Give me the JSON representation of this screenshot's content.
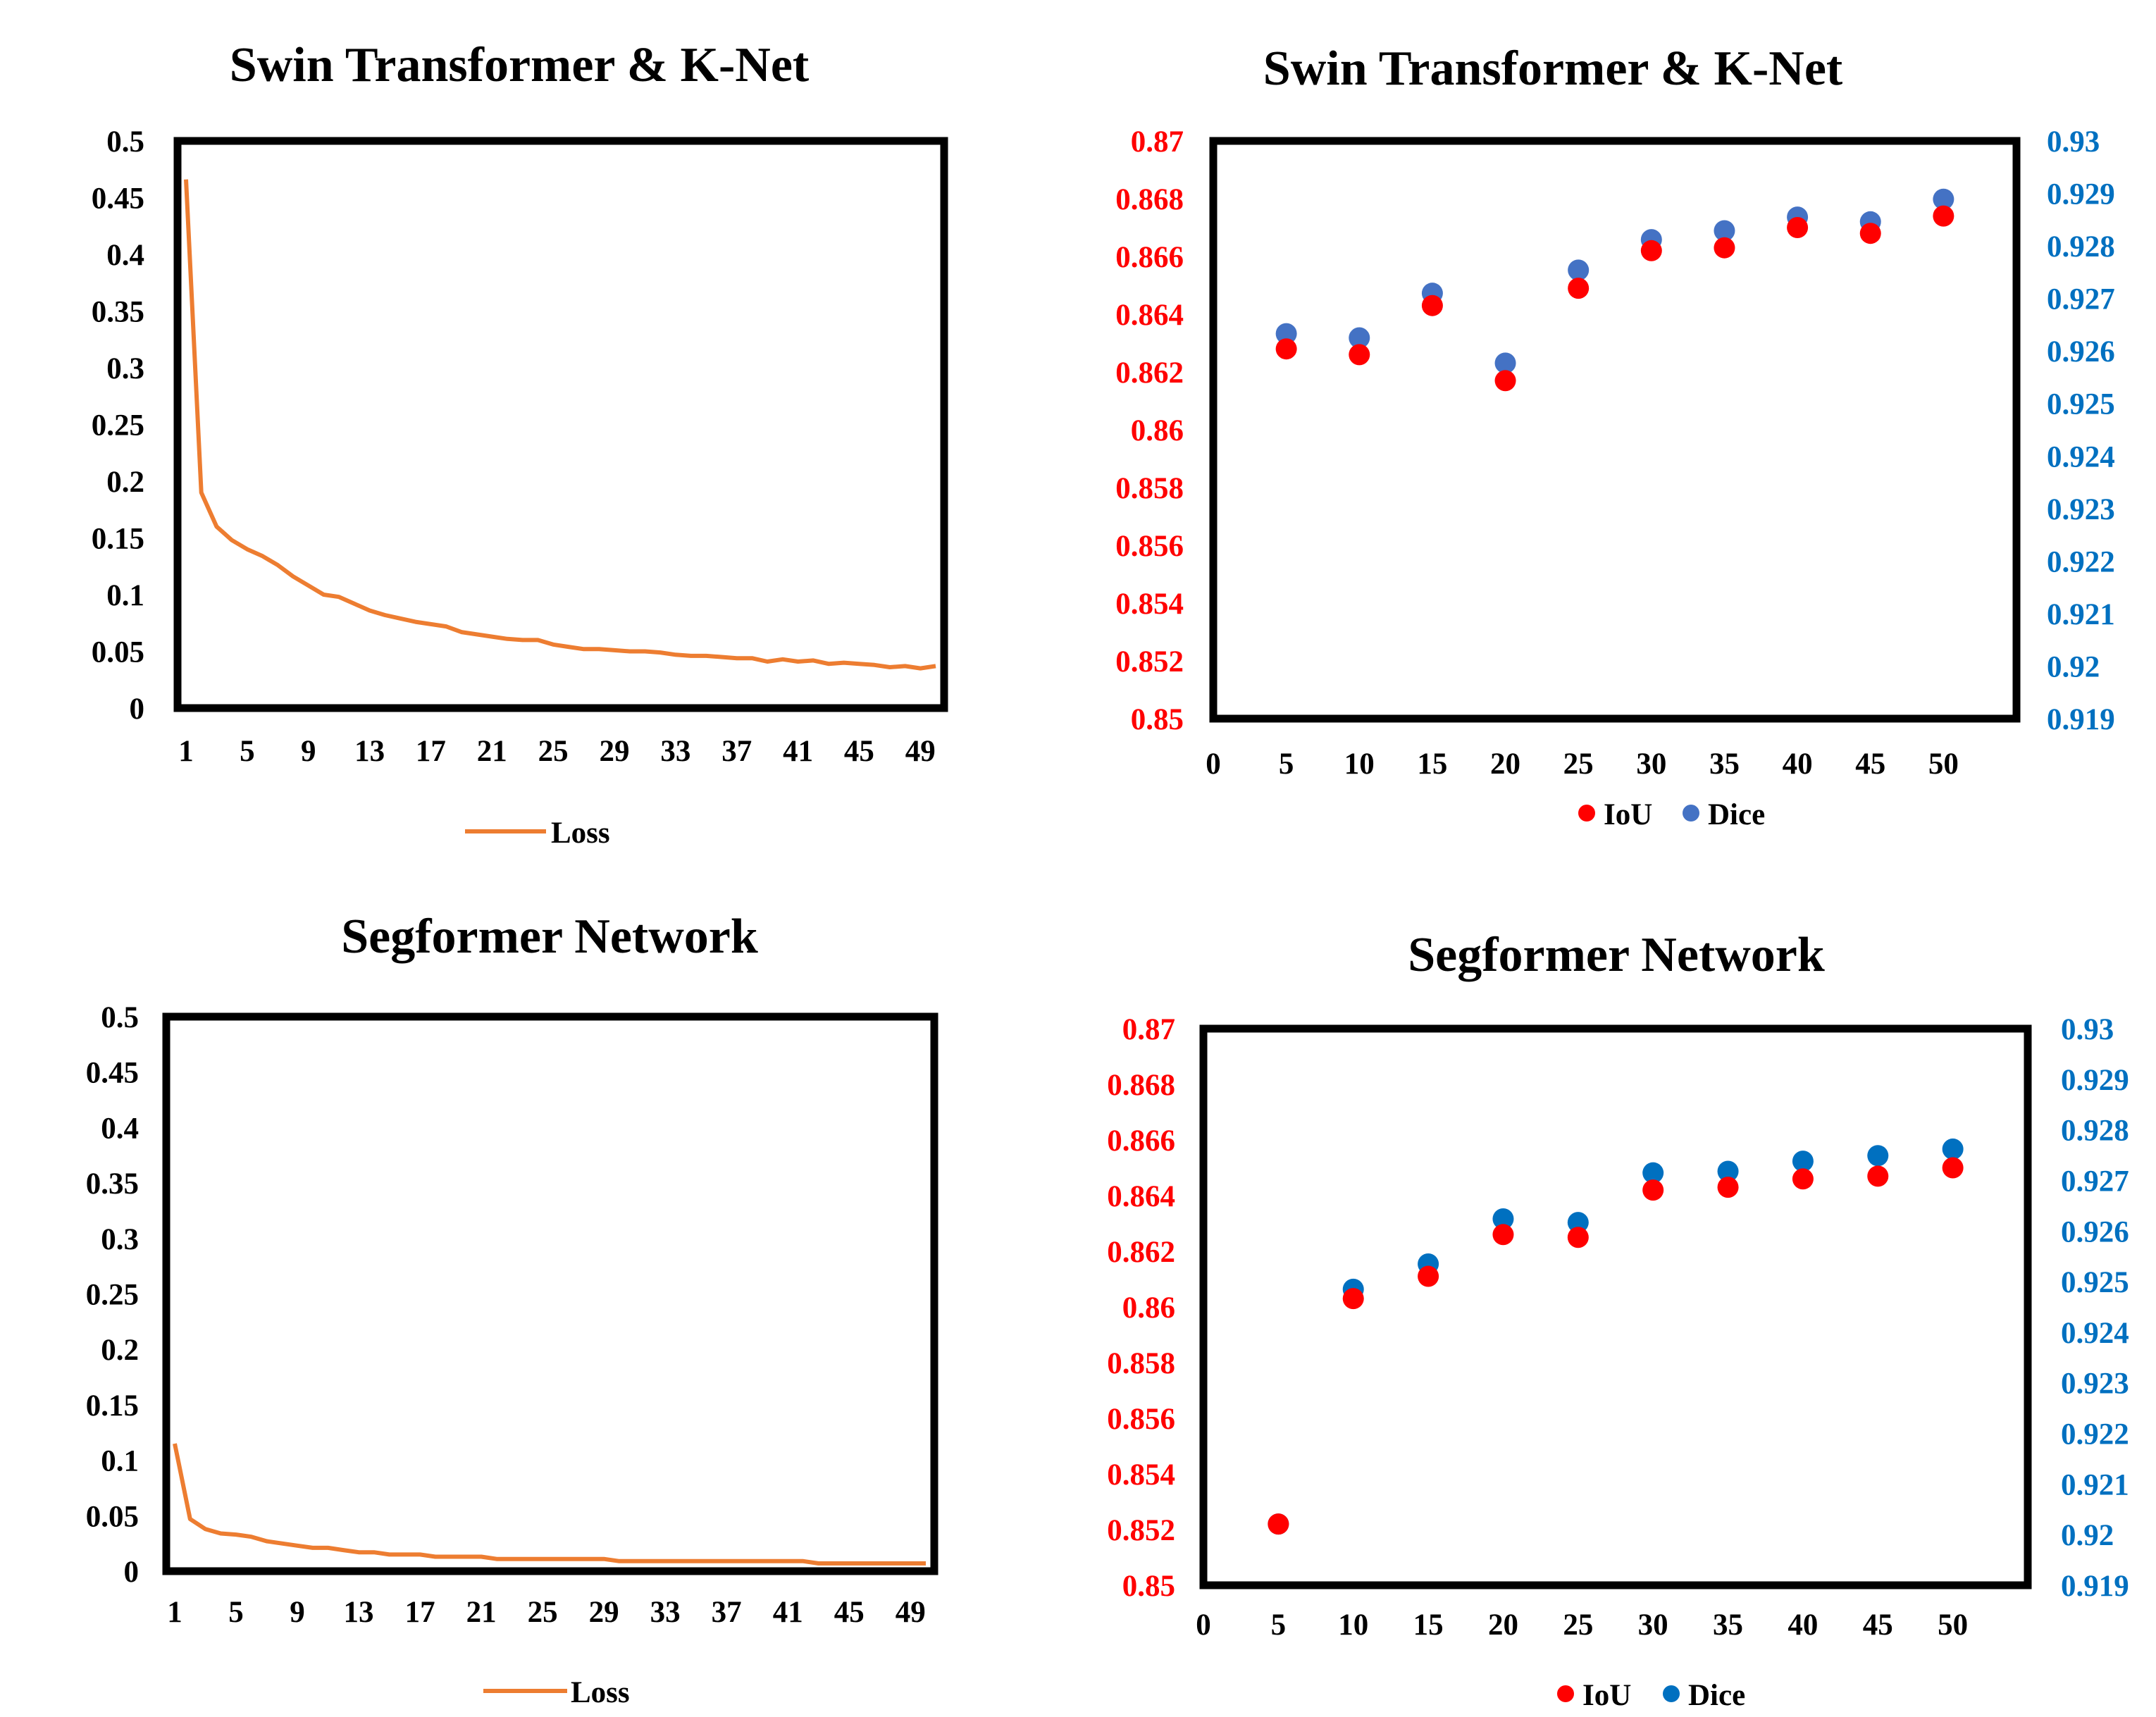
{
  "colors": {
    "loss": "#ED7D31",
    "iou": "#FF0000",
    "dice_swin": "#4472C4",
    "dice_seg": "#0070C0",
    "left_axis_text": "#FF0000",
    "right_axis_text": "#0070C0",
    "frame": "#000000"
  },
  "chart_data": [
    {
      "id": "swin-loss",
      "type": "line",
      "title": "Swin Transformer & K-Net",
      "x": [
        1,
        2,
        3,
        4,
        5,
        6,
        7,
        8,
        9,
        10,
        11,
        12,
        13,
        14,
        15,
        16,
        17,
        18,
        19,
        20,
        21,
        22,
        23,
        24,
        25,
        26,
        27,
        28,
        29,
        30,
        31,
        32,
        33,
        34,
        35,
        36,
        37,
        38,
        39,
        40,
        41,
        42,
        43,
        44,
        45,
        46,
        47,
        48,
        49,
        50
      ],
      "x_tick_labels": [
        "1",
        "5",
        "9",
        "13",
        "17",
        "21",
        "25",
        "29",
        "33",
        "37",
        "41",
        "45",
        "49"
      ],
      "series": [
        {
          "name": "Loss",
          "values": [
            0.466,
            0.19,
            0.16,
            0.148,
            0.14,
            0.134,
            0.126,
            0.116,
            0.108,
            0.1,
            0.098,
            0.092,
            0.086,
            0.082,
            0.079,
            0.076,
            0.074,
            0.072,
            0.067,
            0.065,
            0.063,
            0.061,
            0.06,
            0.06,
            0.056,
            0.054,
            0.052,
            0.052,
            0.051,
            0.05,
            0.05,
            0.049,
            0.047,
            0.046,
            0.046,
            0.045,
            0.044,
            0.044,
            0.041,
            0.043,
            0.041,
            0.042,
            0.039,
            0.04,
            0.039,
            0.038,
            0.036,
            0.037,
            0.035,
            0.037
          ]
        }
      ],
      "y_tick_labels": [
        "0",
        "0.05",
        "0.1",
        "0.15",
        "0.2",
        "0.25",
        "0.3",
        "0.35",
        "0.4",
        "0.45",
        "0.5"
      ],
      "ylim": [
        0,
        0.5
      ],
      "legend": "bottom",
      "grid": false
    },
    {
      "id": "swin-metrics",
      "type": "scatter",
      "title": "Swin Transformer & K-Net",
      "x": [
        5,
        10,
        15,
        20,
        25,
        30,
        35,
        40,
        45,
        50
      ],
      "x_tick_labels": [
        "0",
        "5",
        "10",
        "15",
        "20",
        "25",
        "30",
        "35",
        "40",
        "45",
        "50"
      ],
      "xlim": [
        0,
        55
      ],
      "series": [
        {
          "name": "IoU",
          "axis": "left",
          "values": [
            0.8628,
            0.8626,
            0.8643,
            0.8617,
            0.8649,
            0.8662,
            0.8663,
            0.867,
            0.8668,
            0.8674
          ]
        },
        {
          "name": "Dice",
          "axis": "right",
          "values": [
            0.92633,
            0.92625,
            0.9271,
            0.92577,
            0.92754,
            0.92812,
            0.92829,
            0.92855,
            0.92846,
            0.92889
          ]
        }
      ],
      "y_tick_labels": [
        "0.85",
        "0.852",
        "0.854",
        "0.856",
        "0.858",
        "0.86",
        "0.862",
        "0.864",
        "0.866",
        "0.868",
        "0.87"
      ],
      "ylim": [
        0.85,
        0.87
      ],
      "y2_tick_labels": [
        "0.919",
        "0.92",
        "0.921",
        "0.922",
        "0.923",
        "0.924",
        "0.925",
        "0.926",
        "0.927",
        "0.928",
        "0.929",
        "0.93"
      ],
      "y2lim": [
        0.919,
        0.93
      ],
      "legend": "bottom",
      "grid": false
    },
    {
      "id": "seg-loss",
      "type": "line",
      "title": "Segformer Network",
      "x": [
        1,
        2,
        3,
        4,
        5,
        6,
        7,
        8,
        9,
        10,
        11,
        12,
        13,
        14,
        15,
        16,
        17,
        18,
        19,
        20,
        21,
        22,
        23,
        24,
        25,
        26,
        27,
        28,
        29,
        30,
        31,
        32,
        33,
        34,
        35,
        36,
        37,
        38,
        39,
        40,
        41,
        42,
        43,
        44,
        45,
        46,
        47,
        48,
        49,
        50
      ],
      "x_tick_labels": [
        "1",
        "5",
        "9",
        "13",
        "17",
        "21",
        "25",
        "29",
        "33",
        "37",
        "41",
        "45",
        "49"
      ],
      "series": [
        {
          "name": "Loss",
          "values": [
            0.115,
            0.047,
            0.038,
            0.034,
            0.033,
            0.031,
            0.027,
            0.025,
            0.023,
            0.021,
            0.021,
            0.019,
            0.017,
            0.017,
            0.015,
            0.015,
            0.015,
            0.013,
            0.013,
            0.013,
            0.013,
            0.011,
            0.011,
            0.011,
            0.011,
            0.011,
            0.011,
            0.011,
            0.011,
            0.009,
            0.009,
            0.009,
            0.009,
            0.009,
            0.009,
            0.009,
            0.009,
            0.009,
            0.009,
            0.009,
            0.009,
            0.009,
            0.007,
            0.007,
            0.007,
            0.007,
            0.007,
            0.007,
            0.007,
            0.007
          ]
        }
      ],
      "y_tick_labels": [
        "0",
        "0.05",
        "0.1",
        "0.15",
        "0.2",
        "0.25",
        "0.3",
        "0.35",
        "0.4",
        "0.45",
        "0.5"
      ],
      "ylim": [
        0,
        0.5
      ],
      "legend": "bottom",
      "grid": false
    },
    {
      "id": "seg-metrics",
      "type": "scatter",
      "title": "Segformer Network",
      "x": [
        5,
        10,
        15,
        20,
        25,
        30,
        35,
        40,
        45,
        50
      ],
      "x_tick_labels": [
        "0",
        "5",
        "10",
        "15",
        "20",
        "25",
        "30",
        "35",
        "40",
        "45",
        "50"
      ],
      "xlim": [
        0,
        55
      ],
      "series": [
        {
          "name": "IoU",
          "axis": "left",
          "values": [
            0.8522,
            0.8603,
            0.8611,
            0.8626,
            0.8625,
            0.8642,
            0.8643,
            0.8646,
            0.8647,
            0.865
          ]
        },
        {
          "name": "Dice",
          "axis": "right",
          "values": [
            0.92021,
            0.92485,
            0.92535,
            0.92624,
            0.92617,
            0.92715,
            0.92718,
            0.92738,
            0.92749,
            0.92762
          ]
        }
      ],
      "y_tick_labels": [
        "0.85",
        "0.852",
        "0.854",
        "0.856",
        "0.858",
        "0.86",
        "0.862",
        "0.864",
        "0.866",
        "0.868",
        "0.87"
      ],
      "ylim": [
        0.85,
        0.87
      ],
      "y2_tick_labels": [
        "0.919",
        "0.92",
        "0.921",
        "0.922",
        "0.923",
        "0.924",
        "0.925",
        "0.926",
        "0.927",
        "0.928",
        "0.929",
        "0.93"
      ],
      "y2lim": [
        0.919,
        0.93
      ],
      "legend": "bottom",
      "grid": false
    }
  ]
}
